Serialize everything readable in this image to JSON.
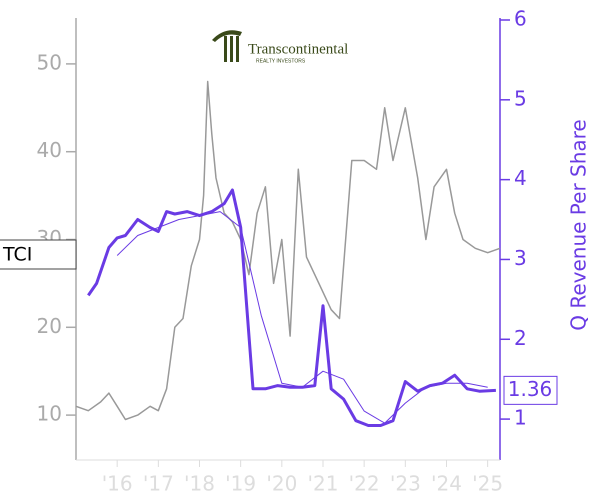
{
  "chart_data": {
    "type": "line",
    "ticker": "TCI",
    "logo": {
      "name": "Transcontinental",
      "tagline": "REALTY INVESTORS"
    },
    "y2label": "Q Revenue Per Share",
    "last_value": 1.36,
    "xlim": [
      2015,
      2025.3
    ],
    "xticks": [
      {
        "value": 2016,
        "label": "'16"
      },
      {
        "value": 2017,
        "label": "'17"
      },
      {
        "value": 2018,
        "label": "'18"
      },
      {
        "value": 2019,
        "label": "'19"
      },
      {
        "value": 2020,
        "label": "'20"
      },
      {
        "value": 2021,
        "label": "'21"
      },
      {
        "value": 2022,
        "label": "'22"
      },
      {
        "value": 2023,
        "label": "'23"
      },
      {
        "value": 2024,
        "label": "'24"
      },
      {
        "value": 2025,
        "label": "'25"
      }
    ],
    "ylim": [
      5,
      55
    ],
    "yticks": [
      10,
      20,
      30,
      40,
      50
    ],
    "y2lim": [
      0.5,
      6
    ],
    "y2ticks": [
      1,
      2,
      3,
      4,
      5,
      6
    ],
    "series": [
      {
        "color": "#999999",
        "width": 1.5,
        "x": [
          2015.0,
          2015.3,
          2015.6,
          2015.8,
          2016.0,
          2016.2,
          2016.5,
          2016.8,
          2017.0,
          2017.2,
          2017.4,
          2017.6,
          2017.8,
          2018.0,
          2018.1,
          2018.2,
          2018.3,
          2018.4,
          2018.6,
          2018.8,
          2019.0,
          2019.2,
          2019.4,
          2019.6,
          2019.8,
          2020.0,
          2020.2,
          2020.4,
          2020.6,
          2020.9,
          2021.0,
          2021.2,
          2021.4,
          2021.6,
          2021.7,
          2022.0,
          2022.3,
          2022.5,
          2022.7,
          2023.0,
          2023.3,
          2023.5,
          2023.7,
          2024.0,
          2024.2,
          2024.4,
          2024.7,
          2025.0,
          2025.3
        ],
        "values": [
          11,
          10.5,
          11.5,
          12.5,
          11,
          9.5,
          10,
          11,
          10.5,
          13,
          20,
          21,
          27,
          30,
          35,
          48,
          42,
          37,
          33,
          32,
          30,
          26,
          33,
          36,
          25,
          30,
          19,
          38,
          28,
          25,
          24,
          22,
          21,
          33,
          39,
          39,
          38,
          45,
          39,
          45,
          37,
          30,
          36,
          38,
          33,
          30,
          29,
          28.5,
          29
        ]
      },
      {
        "color": "#6a3be4",
        "width": 3,
        "axis": "y2",
        "x": [
          2015.3,
          2015.5,
          2015.8,
          2016.0,
          2016.2,
          2016.5,
          2016.8,
          2017.0,
          2017.2,
          2017.4,
          2017.7,
          2018.0,
          2018.3,
          2018.6,
          2018.8,
          2019.0,
          2019.3,
          2019.6,
          2019.9,
          2020.2,
          2020.5,
          2020.8,
          2021.0,
          2021.2,
          2021.5,
          2021.8,
          2022.1,
          2022.4,
          2022.7,
          2023.0,
          2023.3,
          2023.6,
          2023.9,
          2024.2,
          2024.5,
          2024.8,
          2025.2
        ],
        "values": [
          2.55,
          2.7,
          3.15,
          3.27,
          3.3,
          3.5,
          3.4,
          3.35,
          3.6,
          3.57,
          3.6,
          3.55,
          3.6,
          3.7,
          3.87,
          3.4,
          1.38,
          1.38,
          1.42,
          1.4,
          1.4,
          1.42,
          2.42,
          1.38,
          1.25,
          0.98,
          0.92,
          0.92,
          0.98,
          1.47,
          1.35,
          1.42,
          1.45,
          1.55,
          1.38,
          1.35,
          1.36
        ]
      },
      {
        "color": "#6a3be4",
        "width": 1,
        "axis": "y2",
        "x": [
          2016.0,
          2016.5,
          2017.0,
          2017.5,
          2018.0,
          2018.5,
          2019.0,
          2019.5,
          2020.0,
          2020.5,
          2021.0,
          2021.5,
          2022.0,
          2022.5,
          2023.0,
          2023.5,
          2024.0,
          2024.5,
          2025.0
        ],
        "values": [
          3.05,
          3.3,
          3.4,
          3.5,
          3.55,
          3.6,
          3.4,
          2.3,
          1.45,
          1.4,
          1.6,
          1.5,
          1.1,
          0.95,
          1.2,
          1.4,
          1.45,
          1.45,
          1.4
        ]
      }
    ]
  }
}
